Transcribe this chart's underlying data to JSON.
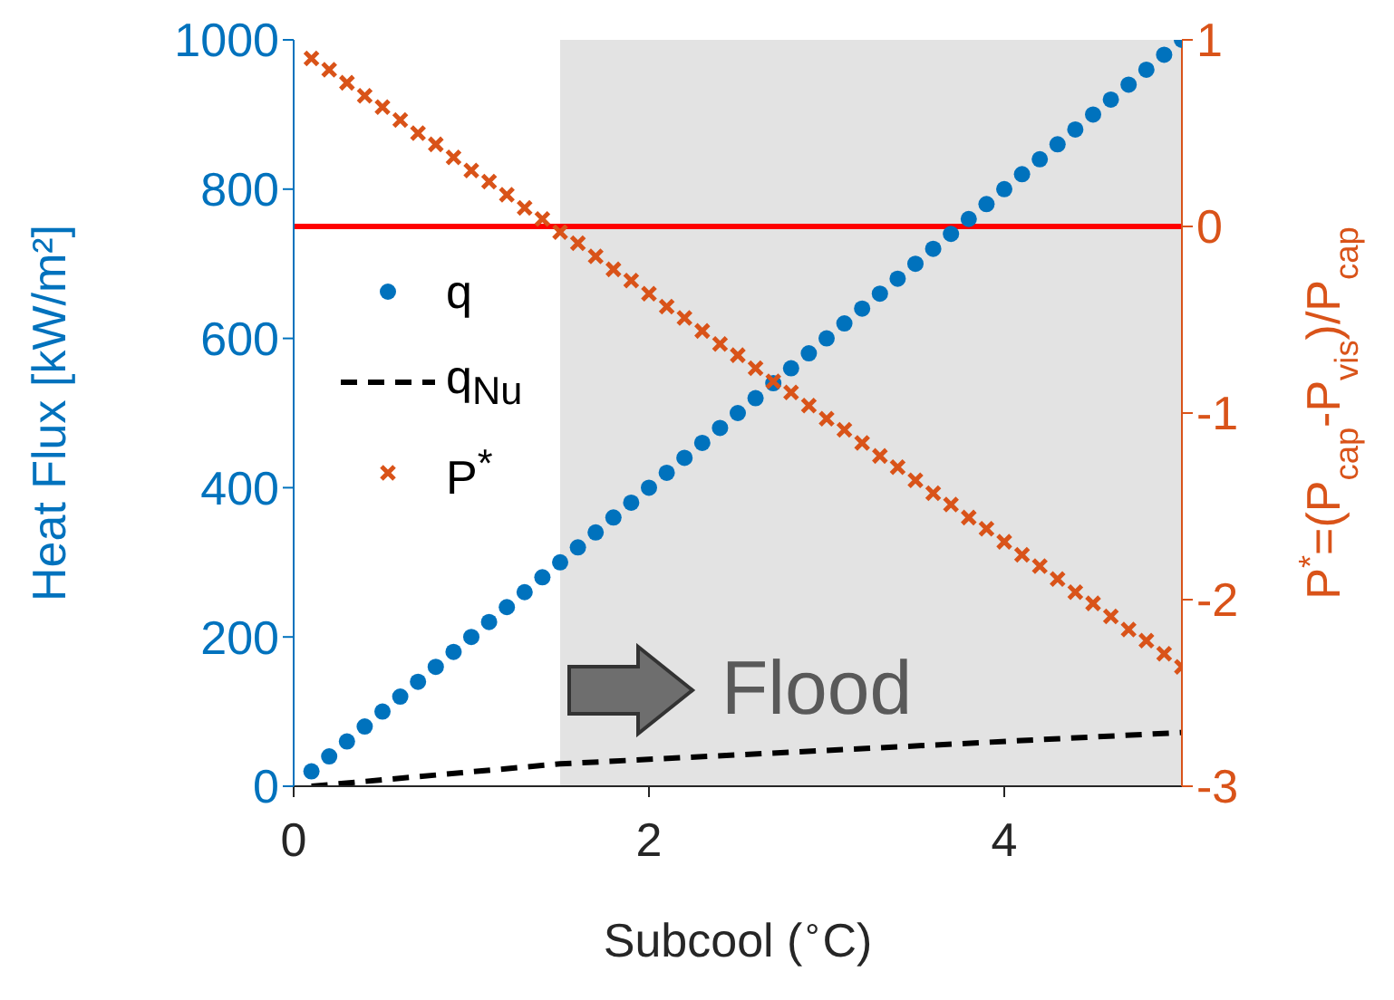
{
  "chart_data": {
    "type": "scatter",
    "xlabel": "Subcool ($^{∘}$C)",
    "ylabel": "Heat Flux [kW/m²]",
    "y2label": "P$^{*}$=(P$_{cap}$-P$_{vis}$)/P$_{cap}$",
    "xlim": [
      0,
      5
    ],
    "xticks": [
      0,
      2,
      4
    ],
    "ylim": [
      0,
      1000
    ],
    "yticks": [
      0,
      200,
      400,
      600,
      800,
      1000
    ],
    "y2lim": [
      -3,
      1
    ],
    "y2ticks": [
      -3,
      -2,
      -1,
      0,
      1
    ],
    "grid": false,
    "legend": "top left",
    "annotations": [
      "Flood"
    ],
    "bands": [
      {
        "axis": "x",
        "from": 1.5,
        "to": 5,
        "color": "#e3e3e3"
      }
    ],
    "ref_lines": [
      {
        "axis": "y2",
        "value": 0,
        "color": "#ff0000"
      }
    ],
    "series": [
      {
        "name": "q",
        "marker": "circle",
        "color": "#0072bd",
        "x": [
          0.1,
          0.2,
          0.3,
          0.4,
          0.5,
          0.6,
          0.7,
          0.8,
          0.9,
          1.0,
          1.1,
          1.2,
          1.3,
          1.4,
          1.5,
          1.6,
          1.7,
          1.8,
          1.9,
          2.0,
          2.1,
          2.2,
          2.3,
          2.4,
          2.5,
          2.6,
          2.7,
          2.8,
          2.9,
          3.0,
          3.1,
          3.2,
          3.3,
          3.4,
          3.5,
          3.6,
          3.7,
          3.8,
          3.9,
          4.0,
          4.1,
          4.2,
          4.3,
          4.4,
          4.5,
          4.6,
          4.7,
          4.8,
          4.9,
          5.0
        ],
        "values": [
          20,
          40,
          60,
          80,
          100,
          120,
          140,
          160,
          180,
          200,
          220,
          240,
          260,
          280,
          300,
          320,
          340,
          360,
          380,
          400,
          420,
          440,
          460,
          480,
          500,
          520,
          540,
          560,
          580,
          600,
          620,
          640,
          660,
          680,
          700,
          720,
          740,
          760,
          780,
          800,
          820,
          840,
          860,
          880,
          900,
          920,
          940,
          960,
          980,
          1000
        ]
      },
      {
        "name": "q$_{Nu}$",
        "type": "line",
        "marker": "none",
        "line_style": "dashed",
        "color": "#000000",
        "x": [
          0.1,
          1.5,
          5.0
        ],
        "values": [
          0,
          30,
          72
        ]
      },
      {
        "name": "P$^{*}$",
        "marker": "cross",
        "axis": "y2",
        "color": "#d95319",
        "x": [
          0.1,
          0.2,
          0.3,
          0.4,
          0.5,
          0.6,
          0.7,
          0.8,
          0.9,
          1.0,
          1.1,
          1.2,
          1.3,
          1.4,
          1.5,
          1.6,
          1.7,
          1.8,
          1.9,
          2.0,
          2.1,
          2.2,
          2.3,
          2.4,
          2.5,
          2.6,
          2.7,
          2.8,
          2.9,
          3.0,
          3.1,
          3.2,
          3.3,
          3.4,
          3.5,
          3.6,
          3.7,
          3.8,
          3.9,
          4.0,
          4.1,
          4.2,
          4.3,
          4.4,
          4.5,
          4.6,
          4.7,
          4.8,
          4.9,
          5.0
        ],
        "values": [
          0.9,
          0.84,
          0.77,
          0.7,
          0.64,
          0.57,
          0.5,
          0.44,
          0.37,
          0.3,
          0.24,
          0.17,
          0.1,
          0.04,
          -0.03,
          -0.09,
          -0.16,
          -0.23,
          -0.29,
          -0.36,
          -0.43,
          -0.49,
          -0.56,
          -0.63,
          -0.69,
          -0.76,
          -0.83,
          -0.89,
          -0.96,
          -1.03,
          -1.09,
          -1.16,
          -1.23,
          -1.29,
          -1.36,
          -1.43,
          -1.49,
          -1.56,
          -1.62,
          -1.69,
          -1.76,
          -1.82,
          -1.89,
          -1.96,
          -2.02,
          -2.09,
          -2.16,
          -2.22,
          -2.29,
          -2.36
        ]
      }
    ]
  }
}
